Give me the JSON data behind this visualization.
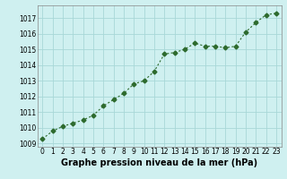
{
  "x": [
    0,
    1,
    2,
    3,
    4,
    5,
    6,
    7,
    8,
    9,
    10,
    11,
    12,
    13,
    14,
    15,
    16,
    17,
    18,
    19,
    20,
    21,
    22,
    23
  ],
  "y": [
    1009.3,
    1009.8,
    1010.1,
    1010.3,
    1010.5,
    1010.8,
    1011.4,
    1011.8,
    1012.2,
    1012.8,
    1013.0,
    1013.6,
    1014.7,
    1014.8,
    1015.0,
    1015.4,
    1015.2,
    1015.2,
    1015.1,
    1015.2,
    1016.1,
    1016.7,
    1017.2,
    1017.3
  ],
  "line_color": "#2d6a2d",
  "marker": "D",
  "markersize": 2.5,
  "linewidth": 0.8,
  "bg_color": "#cff0f0",
  "grid_color": "#a8d8d8",
  "xlabel": "Graphe pression niveau de la mer (hPa)",
  "xlabel_fontsize": 7,
  "xlabel_bold": true,
  "ylabel_ticks": [
    1009,
    1010,
    1011,
    1012,
    1013,
    1014,
    1015,
    1016,
    1017
  ],
  "xlim": [
    -0.5,
    23.5
  ],
  "ylim": [
    1008.8,
    1017.8
  ],
  "xticks": [
    0,
    1,
    2,
    3,
    4,
    5,
    6,
    7,
    8,
    9,
    10,
    11,
    12,
    13,
    14,
    15,
    16,
    17,
    18,
    19,
    20,
    21,
    22,
    23
  ],
  "tick_fontsize": 5.5,
  "grid_linewidth": 0.6,
  "spine_color": "#888888"
}
